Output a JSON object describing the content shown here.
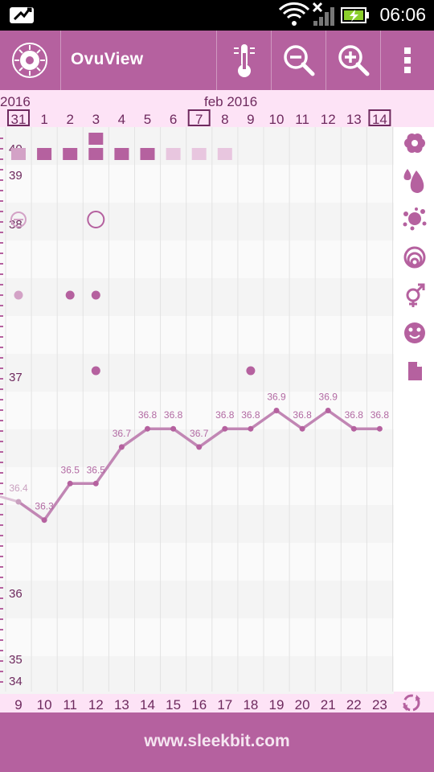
{
  "status_bar": {
    "time": "06:06",
    "icons": [
      "screen-mirror-icon",
      "wifi-icon",
      "signal-off-icon",
      "battery-charging-icon"
    ]
  },
  "app_bar": {
    "title": "OvuView",
    "logo_icon": "ovuview-logo-icon",
    "actions": [
      "thermometer-icon",
      "zoom-out-icon",
      "zoom-in-icon",
      "overflow-menu-icon"
    ]
  },
  "colors": {
    "primary": "#b5619f",
    "temp_line": "#c186b4",
    "temp_label": "#b26aa3",
    "header_bg": "#fde3f6",
    "tick_text": "#6e2a5e",
    "category_icon": "#b5619f"
  },
  "chart_data": {
    "type": "line",
    "title": "",
    "month_labels": [
      {
        "text": "2016",
        "day_index": 0
      },
      {
        "text": "feb 2016",
        "day_index": 8
      }
    ],
    "top_days": [
      "31",
      "1",
      "2",
      "3",
      "4",
      "5",
      "6",
      "7",
      "8",
      "9",
      "10",
      "11",
      "12",
      "13",
      "14"
    ],
    "boxed_days": [
      "31",
      "7",
      "14"
    ],
    "bottom_days": [
      "9",
      "10",
      "11",
      "12",
      "13",
      "14",
      "15",
      "16",
      "17",
      "18",
      "19",
      "20",
      "21",
      "22",
      "23"
    ],
    "y_tick_labels": [
      "40",
      "39",
      "38",
      "37",
      "36",
      "35",
      "34"
    ],
    "series": [
      {
        "values": [
          36.4,
          36.3,
          36.5,
          36.5,
          36.7,
          36.8,
          36.8,
          36.7,
          36.8,
          36.8,
          36.9,
          36.8,
          36.9,
          36.8,
          36.8
        ],
        "labels": [
          "36.4",
          "36.3",
          "36.5",
          "36.5",
          "36.7",
          "36.8",
          "36.8",
          "36.7",
          "36.8",
          "36.8",
          "36.9",
          "36.8",
          "36.9",
          "36.8",
          "36.8"
        ]
      }
    ],
    "period_squares": [
      {
        "day": "31",
        "level": "faded"
      },
      {
        "day": "1",
        "level": "full"
      },
      {
        "day": "2",
        "level": "full"
      },
      {
        "day": "3",
        "level": "heavy"
      },
      {
        "day": "4",
        "level": "full"
      },
      {
        "day": "5",
        "level": "full"
      },
      {
        "day": "6",
        "level": "light"
      },
      {
        "day": "7",
        "level": "light"
      },
      {
        "day": "8",
        "level": "light"
      }
    ],
    "mucus_circles": [
      {
        "day": "31",
        "style": "faded-crossed"
      },
      {
        "day": "3",
        "style": "open"
      }
    ],
    "intercourse_dots": [
      {
        "day": "31",
        "style": "faded"
      },
      {
        "day": "2",
        "style": "full"
      },
      {
        "day": "3",
        "style": "full"
      }
    ],
    "mood_dots": [
      {
        "day": "3"
      },
      {
        "day": "9"
      }
    ],
    "grid": true
  },
  "side_icons": [
    "flower-icon",
    "drop-icon",
    "splash-icon",
    "cervix-icon",
    "gender-icon",
    "smiley-icon",
    "note-icon",
    "sync-icon"
  ],
  "footer": {
    "text": "www.sleekbit.com"
  }
}
